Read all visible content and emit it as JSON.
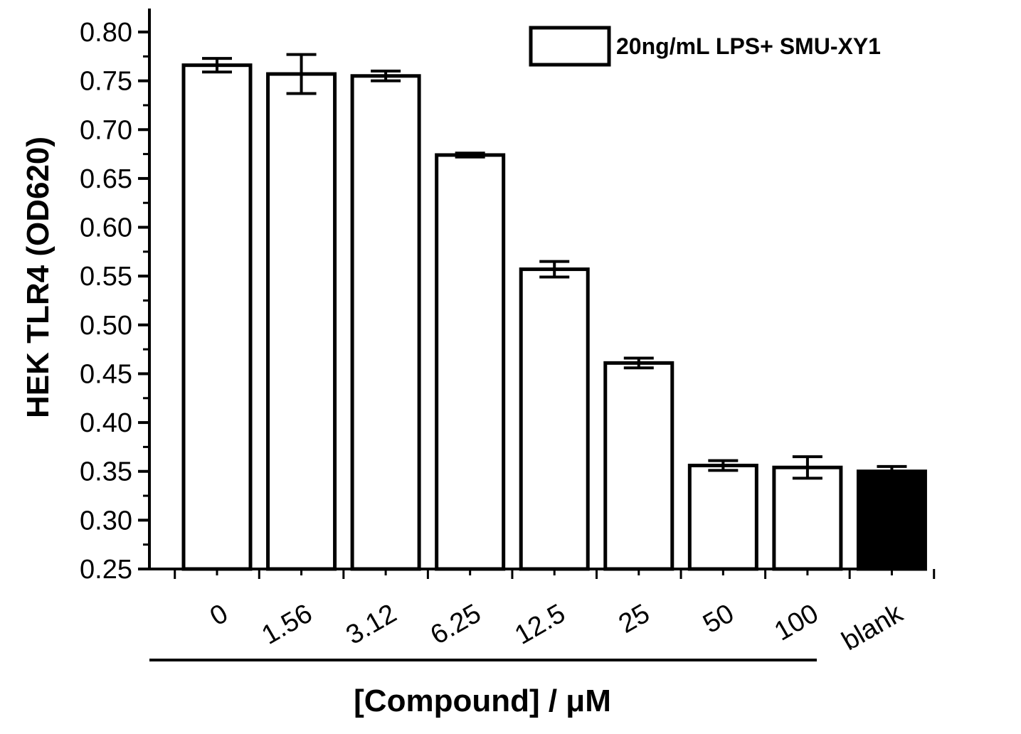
{
  "chart_data": {
    "type": "bar",
    "ylabel": "HEK TLR4 (OD620)",
    "xlabel": "[Compound] / μM",
    "ylim": [
      0.25,
      0.8
    ],
    "yticks": [
      "0.25",
      "0.30",
      "0.35",
      "0.40",
      "0.45",
      "0.50",
      "0.55",
      "0.60",
      "0.65",
      "0.70",
      "0.75",
      "0.80"
    ],
    "legend": {
      "label": "20ng/mL LPS+ SMU-XY1",
      "placement": "top-right"
    },
    "categories": [
      "0",
      "1.56",
      "3.12",
      "6.25",
      "12.5",
      "25",
      "50",
      "100",
      "blank"
    ],
    "values": [
      0.766,
      0.757,
      0.755,
      0.674,
      0.557,
      0.461,
      0.356,
      0.354,
      0.35
    ],
    "errors": [
      0.007,
      0.02,
      0.005,
      0.002,
      0.008,
      0.005,
      0.005,
      0.011,
      0.005
    ],
    "bar_fills": [
      "#ffffff",
      "#ffffff",
      "#ffffff",
      "#ffffff",
      "#ffffff",
      "#ffffff",
      "#ffffff",
      "#ffffff",
      "#000000"
    ],
    "grid": false
  }
}
